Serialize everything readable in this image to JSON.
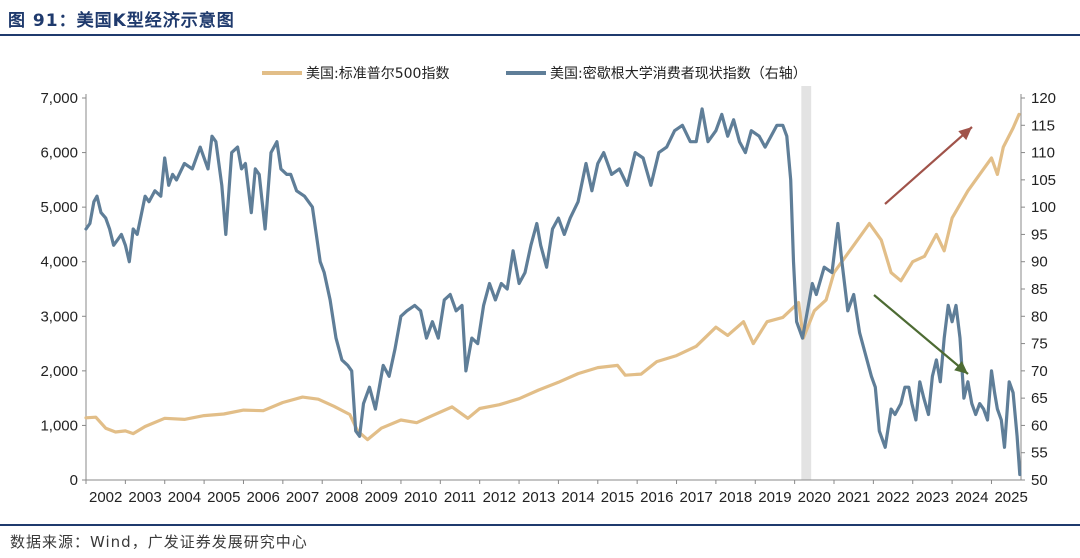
{
  "figure": {
    "title": "图 91：美国K型经济示意图",
    "source": "数据来源：Wind，广发证券发展研究中心"
  },
  "colors": {
    "spx": "#E2BE88",
    "sentiment": "#5F7E98",
    "shade": "#E3E3E3",
    "arrow_up": "#A0534A",
    "arrow_down": "#4D6B33",
    "rule": "#1F3A6D"
  },
  "chart_data": {
    "type": "line",
    "title": "",
    "xlabel": "",
    "ylabel": "",
    "x_range": [
      2002.0,
      2025.75
    ],
    "x_ticks": [
      "2002",
      "2003",
      "2004",
      "2005",
      "2006",
      "2007",
      "2008",
      "2009",
      "2010",
      "2011",
      "2012",
      "2013",
      "2014",
      "2015",
      "2016",
      "2017",
      "2018",
      "2019",
      "2020",
      "2021",
      "2022",
      "2023",
      "2024",
      "2025"
    ],
    "y_left": {
      "range": [
        0,
        7000
      ],
      "ticks": [
        "0",
        "1,000",
        "2,000",
        "3,000",
        "4,000",
        "5,000",
        "6,000",
        "7,000"
      ]
    },
    "y_right": {
      "range": [
        50,
        120
      ],
      "ticks": [
        "50",
        "55",
        "60",
        "65",
        "70",
        "75",
        "80",
        "85",
        "90",
        "95",
        "100",
        "105",
        "110",
        "115",
        "120"
      ]
    },
    "legend_position": "top",
    "shaded_period": [
      2020.17,
      2020.42
    ],
    "series": [
      {
        "name": "美国:标准普尔500指数",
        "axis": "left",
        "points": [
          [
            2002.0,
            1140
          ],
          [
            2002.25,
            1150
          ],
          [
            2002.5,
            950
          ],
          [
            2002.75,
            880
          ],
          [
            2003.0,
            900
          ],
          [
            2003.2,
            850
          ],
          [
            2003.5,
            980
          ],
          [
            2004.0,
            1130
          ],
          [
            2004.5,
            1110
          ],
          [
            2005.0,
            1180
          ],
          [
            2005.5,
            1210
          ],
          [
            2006.0,
            1280
          ],
          [
            2006.5,
            1270
          ],
          [
            2007.0,
            1420
          ],
          [
            2007.5,
            1520
          ],
          [
            2007.9,
            1480
          ],
          [
            2008.3,
            1350
          ],
          [
            2008.7,
            1200
          ],
          [
            2008.9,
            900
          ],
          [
            2009.15,
            740
          ],
          [
            2009.5,
            950
          ],
          [
            2010.0,
            1100
          ],
          [
            2010.4,
            1050
          ],
          [
            2010.8,
            1180
          ],
          [
            2011.3,
            1340
          ],
          [
            2011.7,
            1130
          ],
          [
            2012.0,
            1310
          ],
          [
            2012.5,
            1380
          ],
          [
            2013.0,
            1490
          ],
          [
            2013.5,
            1650
          ],
          [
            2014.0,
            1790
          ],
          [
            2014.5,
            1950
          ],
          [
            2015.0,
            2060
          ],
          [
            2015.5,
            2100
          ],
          [
            2015.7,
            1920
          ],
          [
            2016.1,
            1940
          ],
          [
            2016.5,
            2170
          ],
          [
            2017.0,
            2280
          ],
          [
            2017.5,
            2450
          ],
          [
            2018.0,
            2800
          ],
          [
            2018.3,
            2650
          ],
          [
            2018.7,
            2900
          ],
          [
            2018.95,
            2500
          ],
          [
            2019.3,
            2900
          ],
          [
            2019.7,
            2980
          ],
          [
            2020.1,
            3250
          ],
          [
            2020.22,
            2600
          ],
          [
            2020.5,
            3100
          ],
          [
            2020.8,
            3300
          ],
          [
            2021.0,
            3800
          ],
          [
            2021.5,
            4300
          ],
          [
            2021.9,
            4700
          ],
          [
            2022.2,
            4400
          ],
          [
            2022.45,
            3800
          ],
          [
            2022.7,
            3650
          ],
          [
            2023.0,
            4000
          ],
          [
            2023.3,
            4100
          ],
          [
            2023.6,
            4500
          ],
          [
            2023.8,
            4200
          ],
          [
            2024.0,
            4800
          ],
          [
            2024.4,
            5300
          ],
          [
            2024.8,
            5700
          ],
          [
            2025.0,
            5900
          ],
          [
            2025.15,
            5600
          ],
          [
            2025.3,
            6100
          ],
          [
            2025.55,
            6450
          ],
          [
            2025.7,
            6700
          ]
        ]
      },
      {
        "name": "美国:密歇根大学消费者现状指数（右轴）",
        "axis": "right",
        "points": [
          [
            2002.0,
            96
          ],
          [
            2002.1,
            97
          ],
          [
            2002.2,
            101
          ],
          [
            2002.28,
            102
          ],
          [
            2002.38,
            99
          ],
          [
            2002.5,
            98
          ],
          [
            2002.6,
            96
          ],
          [
            2002.7,
            93
          ],
          [
            2002.8,
            94
          ],
          [
            2002.9,
            95
          ],
          [
            2003.0,
            93
          ],
          [
            2003.1,
            90
          ],
          [
            2003.2,
            96
          ],
          [
            2003.3,
            95
          ],
          [
            2003.5,
            102
          ],
          [
            2003.6,
            101
          ],
          [
            2003.75,
            103
          ],
          [
            2003.9,
            102
          ],
          [
            2004.0,
            109
          ],
          [
            2004.1,
            104
          ],
          [
            2004.2,
            106
          ],
          [
            2004.3,
            105
          ],
          [
            2004.5,
            108
          ],
          [
            2004.7,
            107
          ],
          [
            2004.9,
            111
          ],
          [
            2005.0,
            109
          ],
          [
            2005.1,
            107
          ],
          [
            2005.2,
            113
          ],
          [
            2005.3,
            112
          ],
          [
            2005.45,
            104
          ],
          [
            2005.55,
            95
          ],
          [
            2005.7,
            110
          ],
          [
            2005.85,
            111
          ],
          [
            2005.95,
            107
          ],
          [
            2006.05,
            108
          ],
          [
            2006.2,
            99
          ],
          [
            2006.3,
            107
          ],
          [
            2006.4,
            106
          ],
          [
            2006.55,
            96
          ],
          [
            2006.7,
            110
          ],
          [
            2006.85,
            112
          ],
          [
            2006.95,
            107
          ],
          [
            2007.1,
            106
          ],
          [
            2007.2,
            106
          ],
          [
            2007.35,
            103
          ],
          [
            2007.55,
            102
          ],
          [
            2007.75,
            100
          ],
          [
            2007.85,
            95
          ],
          [
            2007.95,
            90
          ],
          [
            2008.05,
            88
          ],
          [
            2008.2,
            83
          ],
          [
            2008.35,
            76
          ],
          [
            2008.5,
            72
          ],
          [
            2008.65,
            71
          ],
          [
            2008.75,
            70
          ],
          [
            2008.85,
            59
          ],
          [
            2008.95,
            58
          ],
          [
            2009.05,
            64
          ],
          [
            2009.2,
            67
          ],
          [
            2009.35,
            63
          ],
          [
            2009.55,
            71
          ],
          [
            2009.7,
            69
          ],
          [
            2009.85,
            74
          ],
          [
            2010.0,
            80
          ],
          [
            2010.15,
            81
          ],
          [
            2010.35,
            82
          ],
          [
            2010.5,
            81
          ],
          [
            2010.65,
            76
          ],
          [
            2010.8,
            79
          ],
          [
            2010.95,
            76
          ],
          [
            2011.1,
            83
          ],
          [
            2011.25,
            84
          ],
          [
            2011.4,
            81
          ],
          [
            2011.55,
            82
          ],
          [
            2011.65,
            70
          ],
          [
            2011.8,
            76
          ],
          [
            2011.95,
            75
          ],
          [
            2012.1,
            82
          ],
          [
            2012.25,
            86
          ],
          [
            2012.4,
            83
          ],
          [
            2012.55,
            86
          ],
          [
            2012.7,
            85
          ],
          [
            2012.85,
            92
          ],
          [
            2013.0,
            86
          ],
          [
            2013.15,
            88
          ],
          [
            2013.3,
            93
          ],
          [
            2013.45,
            97
          ],
          [
            2013.55,
            93
          ],
          [
            2013.7,
            89
          ],
          [
            2013.85,
            96
          ],
          [
            2014.0,
            98
          ],
          [
            2014.15,
            95
          ],
          [
            2014.3,
            98
          ],
          [
            2014.5,
            101
          ],
          [
            2014.7,
            108
          ],
          [
            2014.85,
            103
          ],
          [
            2015.0,
            108
          ],
          [
            2015.15,
            110
          ],
          [
            2015.35,
            106
          ],
          [
            2015.55,
            107
          ],
          [
            2015.75,
            104
          ],
          [
            2015.95,
            110
          ],
          [
            2016.15,
            109
          ],
          [
            2016.35,
            104
          ],
          [
            2016.55,
            110
          ],
          [
            2016.75,
            111
          ],
          [
            2016.95,
            114
          ],
          [
            2017.15,
            115
          ],
          [
            2017.35,
            112
          ],
          [
            2017.5,
            112
          ],
          [
            2017.65,
            118
          ],
          [
            2017.8,
            112
          ],
          [
            2018.0,
            114
          ],
          [
            2018.15,
            117
          ],
          [
            2018.3,
            113
          ],
          [
            2018.45,
            116
          ],
          [
            2018.6,
            112
          ],
          [
            2018.75,
            110
          ],
          [
            2018.9,
            114
          ],
          [
            2019.1,
            113
          ],
          [
            2019.25,
            111
          ],
          [
            2019.4,
            113
          ],
          [
            2019.55,
            115
          ],
          [
            2019.7,
            115
          ],
          [
            2019.8,
            113
          ],
          [
            2019.9,
            105
          ],
          [
            2019.97,
            90
          ],
          [
            2020.05,
            79
          ],
          [
            2020.2,
            76
          ],
          [
            2020.35,
            82
          ],
          [
            2020.45,
            86
          ],
          [
            2020.55,
            84
          ],
          [
            2020.75,
            89
          ],
          [
            2020.95,
            88
          ],
          [
            2021.1,
            97
          ],
          [
            2021.2,
            90
          ],
          [
            2021.35,
            81
          ],
          [
            2021.5,
            84
          ],
          [
            2021.65,
            77
          ],
          [
            2021.8,
            73
          ],
          [
            2021.95,
            69
          ],
          [
            2022.05,
            67
          ],
          [
            2022.15,
            59
          ],
          [
            2022.3,
            56
          ],
          [
            2022.45,
            63
          ],
          [
            2022.55,
            62
          ],
          [
            2022.7,
            64
          ],
          [
            2022.8,
            67
          ],
          [
            2022.9,
            67
          ],
          [
            2022.98,
            64
          ],
          [
            2023.08,
            61
          ],
          [
            2023.18,
            68
          ],
          [
            2023.28,
            65
          ],
          [
            2023.4,
            62
          ],
          [
            2023.5,
            69
          ],
          [
            2023.6,
            72
          ],
          [
            2023.7,
            68
          ],
          [
            2023.8,
            76
          ],
          [
            2023.9,
            82
          ],
          [
            2024.0,
            79
          ],
          [
            2024.1,
            82
          ],
          [
            2024.2,
            76
          ],
          [
            2024.3,
            65
          ],
          [
            2024.4,
            68
          ],
          [
            2024.5,
            64
          ],
          [
            2024.6,
            62
          ],
          [
            2024.7,
            64
          ],
          [
            2024.8,
            63
          ],
          [
            2024.9,
            61
          ],
          [
            2025.0,
            70
          ],
          [
            2025.08,
            66
          ],
          [
            2025.15,
            63
          ],
          [
            2025.25,
            61
          ],
          [
            2025.33,
            56
          ],
          [
            2025.45,
            68
          ],
          [
            2025.55,
            66
          ],
          [
            2025.65,
            58
          ],
          [
            2025.72,
            51
          ]
        ]
      }
    ]
  }
}
